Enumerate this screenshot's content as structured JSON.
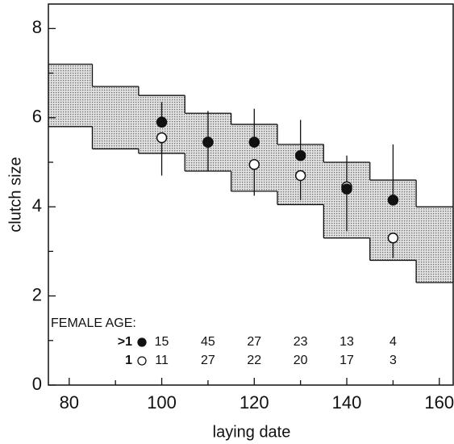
{
  "chart_data": {
    "type": "scatter",
    "xlabel": "laying date",
    "ylabel": "clutch size",
    "xlim": [
      75.5,
      163
    ],
    "ylim": [
      0,
      8.55
    ],
    "xticks": [
      80,
      100,
      120,
      140,
      160
    ],
    "xminorticks": [
      90,
      110,
      130,
      150
    ],
    "yticks": [
      0,
      2,
      4,
      6,
      8
    ],
    "yminorticks": [
      1,
      3,
      5,
      7
    ],
    "band": {
      "edges": [
        75,
        85,
        95,
        105,
        115,
        125,
        135,
        145,
        155,
        165
      ],
      "upper": [
        7.2,
        6.7,
        6.5,
        6.1,
        5.85,
        5.4,
        5.0,
        4.6,
        4.0
      ],
      "lower": [
        5.8,
        5.3,
        5.2,
        4.8,
        4.35,
        4.05,
        3.3,
        2.8,
        2.3
      ],
      "color": "#c4c4c4"
    },
    "x": [
      100,
      110,
      120,
      130,
      140,
      150
    ],
    "series": [
      {
        "name": ">1",
        "color": "#111111",
        "filled": true,
        "error_direction": "up",
        "values": [
          5.9,
          5.45,
          5.45,
          5.15,
          4.4,
          4.15
        ],
        "errors": [
          0.45,
          0.7,
          0.75,
          0.8,
          0.75,
          1.25
        ],
        "n": [
          15,
          45,
          27,
          23,
          13,
          4
        ]
      },
      {
        "name": "1",
        "color": "#111111",
        "filled": false,
        "error_direction": "down",
        "values": [
          5.55,
          5.45,
          4.95,
          4.7,
          4.45,
          3.3
        ],
        "errors": [
          0.85,
          0.65,
          0.7,
          0.55,
          1.0,
          0.45
        ],
        "n": [
          11,
          27,
          22,
          20,
          17,
          3
        ]
      }
    ],
    "sample_size_title": "FEMALE AGE:"
  }
}
